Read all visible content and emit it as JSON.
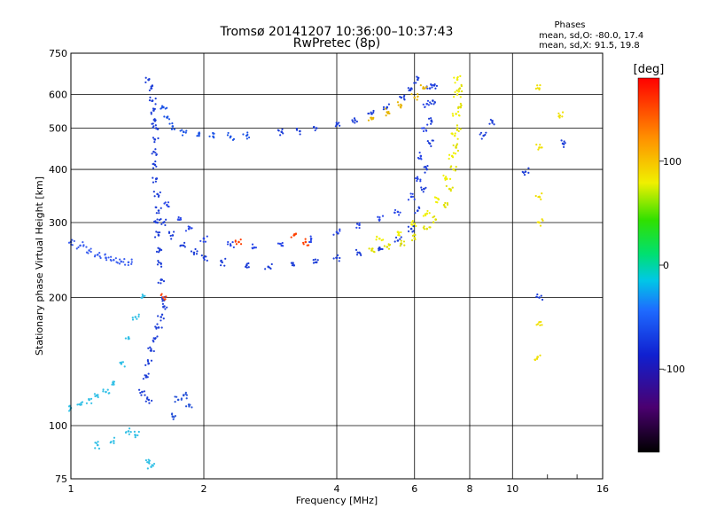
{
  "chart_data": {
    "type": "scatter",
    "title": "Tromsø 20141207 10:36:00–10:37:43",
    "subtitle": "RwPretec (8p)",
    "stats": {
      "heading": "Phases",
      "line1": "mean, sd,O: -80.0, 17.4",
      "line2": "mean, sd,X:  91.5, 19.8"
    },
    "xlabel": "Frequency [MHz]",
    "ylabel": "Stationary phase Virtual Height [km]",
    "x_scale": "log",
    "y_scale": "log",
    "xlim": [
      1,
      16
    ],
    "ylim": [
      75,
      750
    ],
    "grid": true,
    "x_ticks": [
      {
        "v": 1,
        "label": "1"
      },
      {
        "v": 2,
        "label": "2"
      },
      {
        "v": 4,
        "label": "4"
      },
      {
        "v": 6,
        "label": "6"
      },
      {
        "v": 8,
        "label": "8"
      },
      {
        "v": 10,
        "label": "10"
      },
      {
        "v": 16,
        "label": "16"
      }
    ],
    "y_ticks": [
      {
        "v": 75,
        "label": "75"
      },
      {
        "v": 100,
        "label": "100"
      },
      {
        "v": 200,
        "label": "200"
      },
      {
        "v": 300,
        "label": "300"
      },
      {
        "v": 400,
        "label": "400"
      },
      {
        "v": 500,
        "label": "500"
      },
      {
        "v": 600,
        "label": "600"
      },
      {
        "v": 750,
        "label": "750"
      }
    ],
    "colorbar": {
      "label": "[deg]",
      "range": [
        -180,
        180
      ],
      "ticks": [
        {
          "v": 100,
          "label": "100"
        },
        {
          "v": 0,
          "label": "0"
        },
        {
          "v": -100,
          "label": "-100"
        }
      ]
    },
    "series": [
      {
        "color": "#1e3fd8",
        "points": [
          [
            1.5,
            650
          ],
          [
            1.52,
            620
          ],
          [
            1.53,
            580
          ],
          [
            1.54,
            550
          ],
          [
            1.55,
            520
          ],
          [
            1.56,
            500
          ],
          [
            1.55,
            470
          ],
          [
            1.54,
            440
          ],
          [
            1.55,
            410
          ],
          [
            1.56,
            380
          ],
          [
            1.57,
            350
          ],
          [
            1.58,
            320
          ],
          [
            1.57,
            300
          ],
          [
            1.58,
            280
          ],
          [
            1.59,
            260
          ],
          [
            1.6,
            240
          ],
          [
            1.6,
            220
          ],
          [
            1.61,
            200
          ],
          [
            1.62,
            190
          ],
          [
            1.6,
            180
          ],
          [
            1.58,
            170
          ],
          [
            1.55,
            160
          ],
          [
            1.52,
            150
          ],
          [
            1.5,
            140
          ],
          [
            1.48,
            130
          ],
          [
            1.45,
            120
          ],
          [
            1.5,
            115
          ]
        ]
      },
      {
        "color": "#1e55e6",
        "points": [
          [
            1.62,
            560
          ],
          [
            1.65,
            530
          ],
          [
            1.7,
            505
          ],
          [
            1.8,
            490
          ],
          [
            1.95,
            480
          ],
          [
            2.1,
            478
          ],
          [
            2.3,
            478
          ],
          [
            2.5,
            480
          ]
        ]
      },
      {
        "color": "#1e3fd8",
        "points": [
          [
            3.0,
            490
          ],
          [
            3.3,
            492
          ],
          [
            3.6,
            500
          ],
          [
            4.0,
            510
          ],
          [
            4.4,
            522
          ],
          [
            4.8,
            540
          ],
          [
            5.2,
            560
          ],
          [
            5.6,
            590
          ],
          [
            5.9,
            620
          ],
          [
            6.1,
            650
          ]
        ]
      },
      {
        "color": "#1e3fd8",
        "points": [
          [
            1.62,
            300
          ],
          [
            1.7,
            280
          ],
          [
            1.8,
            265
          ],
          [
            1.9,
            255
          ],
          [
            2.0,
            248
          ],
          [
            2.2,
            242
          ],
          [
            2.5,
            238
          ],
          [
            2.8,
            236
          ],
          [
            3.2,
            238
          ],
          [
            3.6,
            242
          ],
          [
            4.0,
            248
          ],
          [
            4.5,
            255
          ],
          [
            5.0,
            262
          ],
          [
            5.5,
            272
          ],
          [
            5.9,
            290
          ],
          [
            6.1,
            320
          ],
          [
            6.3,
            360
          ],
          [
            6.4,
            400
          ],
          [
            6.5,
            460
          ],
          [
            6.55,
            520
          ],
          [
            6.6,
            580
          ],
          [
            6.65,
            630
          ]
        ]
      },
      {
        "color": "#2a48e8",
        "points": [
          [
            1.65,
            330
          ],
          [
            1.75,
            305
          ],
          [
            1.85,
            290
          ],
          [
            2.0,
            275
          ],
          [
            2.3,
            265
          ],
          [
            2.6,
            262
          ],
          [
            3.0,
            265
          ],
          [
            3.5,
            275
          ],
          [
            4.0,
            285
          ],
          [
            4.5,
            296
          ],
          [
            5.0,
            305
          ],
          [
            5.5,
            318
          ],
          [
            5.9,
            345
          ],
          [
            6.1,
            380
          ],
          [
            6.2,
            430
          ],
          [
            6.3,
            500
          ],
          [
            6.4,
            570
          ],
          [
            6.5,
            620
          ]
        ]
      },
      {
        "color": "#3a5ef0",
        "points": [
          [
            1.0,
            270
          ],
          [
            1.05,
            265
          ],
          [
            1.1,
            258
          ],
          [
            1.15,
            252
          ],
          [
            1.2,
            248
          ],
          [
            1.25,
            245
          ],
          [
            1.3,
            243
          ],
          [
            1.35,
            242
          ]
        ]
      },
      {
        "color": "#e0e000",
        "points": [
          [
            4.8,
            258
          ],
          [
            5.2,
            263
          ],
          [
            5.6,
            268
          ],
          [
            6.0,
            276
          ],
          [
            6.4,
            290
          ],
          [
            6.7,
            305
          ],
          [
            7.0,
            330
          ],
          [
            7.2,
            360
          ],
          [
            7.35,
            400
          ],
          [
            7.45,
            450
          ],
          [
            7.5,
            500
          ],
          [
            7.55,
            560
          ],
          [
            7.6,
            620
          ]
        ]
      },
      {
        "color": "#f0f000",
        "points": [
          [
            5.0,
            275
          ],
          [
            5.5,
            285
          ],
          [
            6.0,
            298
          ],
          [
            6.4,
            315
          ],
          [
            6.8,
            340
          ],
          [
            7.1,
            380
          ],
          [
            7.3,
            430
          ],
          [
            7.4,
            480
          ],
          [
            7.45,
            540
          ],
          [
            7.5,
            600
          ],
          [
            7.5,
            650
          ]
        ]
      },
      {
        "color": "#e6b400",
        "points": [
          [
            4.8,
            525
          ],
          [
            5.2,
            545
          ],
          [
            5.6,
            565
          ],
          [
            6.0,
            590
          ],
          [
            6.3,
            620
          ]
        ]
      },
      {
        "color": "#32c0e6",
        "points": [
          [
            1.0,
            110
          ],
          [
            1.05,
            112
          ],
          [
            1.1,
            115
          ],
          [
            1.15,
            118
          ],
          [
            1.2,
            120
          ],
          [
            1.25,
            125
          ],
          [
            1.3,
            140
          ],
          [
            1.35,
            160
          ],
          [
            1.4,
            180
          ],
          [
            1.45,
            200
          ]
        ]
      },
      {
        "color": "#32c0e6",
        "points": [
          [
            1.15,
            90
          ],
          [
            1.25,
            92
          ],
          [
            1.35,
            97
          ],
          [
            1.4,
            95
          ],
          [
            1.5,
            82
          ],
          [
            1.52,
            80
          ]
        ]
      },
      {
        "color": "#2a55d8",
        "points": [
          [
            1.75,
            115
          ],
          [
            1.8,
            118
          ],
          [
            1.7,
            105
          ],
          [
            1.85,
            112
          ]
        ]
      },
      {
        "color": "#ff4000",
        "points": [
          [
            1.62,
            200
          ],
          [
            2.4,
            270
          ],
          [
            3.2,
            280
          ],
          [
            3.4,
            270
          ]
        ]
      },
      {
        "color": "#f0e000",
        "points": [
          [
            11.5,
            620
          ],
          [
            12.8,
            535
          ],
          [
            11.5,
            450
          ],
          [
            11.5,
            345
          ],
          [
            11.5,
            300
          ],
          [
            11.5,
            175
          ],
          [
            11.4,
            145
          ]
        ]
      },
      {
        "color": "#1e3fd8",
        "points": [
          [
            11.5,
            200
          ],
          [
            10.7,
            395
          ],
          [
            9.0,
            520
          ],
          [
            13.0,
            460
          ],
          [
            8.6,
            480
          ]
        ]
      }
    ]
  }
}
